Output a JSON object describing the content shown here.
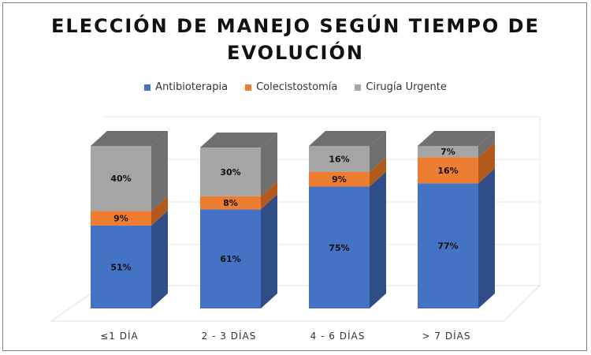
{
  "chart_data": {
    "type": "bar",
    "stacked": true,
    "three_d": true,
    "title": "ELECCIÓN DE MANEJO SEGÚN TIEMPO DE EVOLUCIÓN",
    "categories": [
      "≤1 DÍA",
      "2 - 3 DÍAS",
      "4 - 6 DÍAS",
      "> 7 DÍAS"
    ],
    "series": [
      {
        "name": "Antibioterapia",
        "values": [
          51,
          61,
          75,
          77
        ],
        "labels": [
          "51%",
          "61%",
          "75%",
          "77%"
        ],
        "color": "#4472C4",
        "side_color": "#2F4E87"
      },
      {
        "name": "Colecistostomía",
        "values": [
          9,
          8,
          9,
          16
        ],
        "labels": [
          "9%",
          "8%",
          "9%",
          "16%"
        ],
        "color": "#ED7D31",
        "side_color": "#B25A1E"
      },
      {
        "name": "Cirugía Urgente",
        "values": [
          40,
          30,
          16,
          7
        ],
        "labels": [
          "40%",
          "30%",
          "16%",
          "7%"
        ],
        "color": "#A5A5A5",
        "side_color": "#6F6F6F"
      }
    ],
    "legend_position": "top",
    "grid": true,
    "ylim": [
      0,
      100
    ]
  }
}
